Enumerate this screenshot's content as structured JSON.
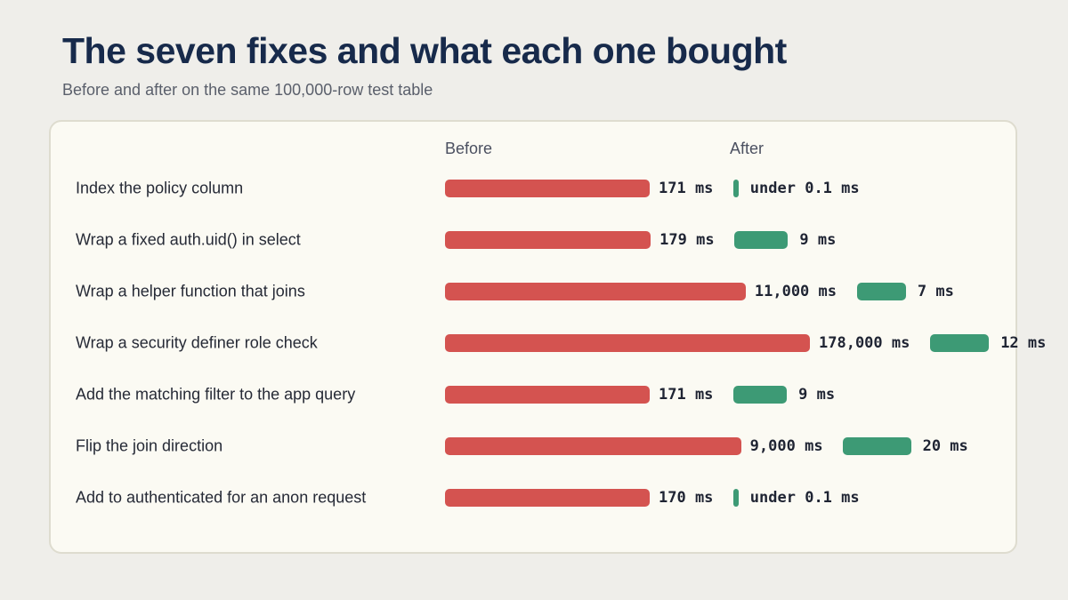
{
  "header": {
    "title": "The seven fixes and what each one bought",
    "subtitle": "Before and after on the same 100,000-row test table"
  },
  "columns": {
    "before": "Before",
    "after": "After"
  },
  "colors": {
    "before": "#d45350",
    "after": "#3d9a75",
    "title": "#172a4b"
  },
  "chart_data": {
    "type": "bar",
    "orientation": "horizontal",
    "categories": [
      "Index the policy column",
      "Wrap a fixed auth.uid() in select",
      "Wrap a helper function that joins",
      "Wrap a security definer role check",
      "Add the matching filter to the app query",
      "Flip the join direction",
      "Add to authenticated for an anon request"
    ],
    "series": [
      {
        "name": "Before",
        "values_ms": [
          171,
          179,
          11000,
          178000,
          171,
          9000,
          170
        ],
        "labels": [
          "171 ms",
          "179 ms",
          "11,000 ms",
          "178,000 ms",
          "171 ms",
          "9,000 ms",
          "170 ms"
        ]
      },
      {
        "name": "After",
        "values_ms": [
          0.1,
          9,
          7,
          12,
          9,
          20,
          0.1
        ],
        "labels": [
          "under 0.1 ms",
          "9 ms",
          "7 ms",
          "12 ms",
          "9 ms",
          "20 ms",
          "under 0.1 ms"
        ]
      }
    ],
    "title": "The seven fixes and what each one bought",
    "subtitle": "Before and after on the same 100,000-row test table",
    "grid": false,
    "legend": "none"
  }
}
